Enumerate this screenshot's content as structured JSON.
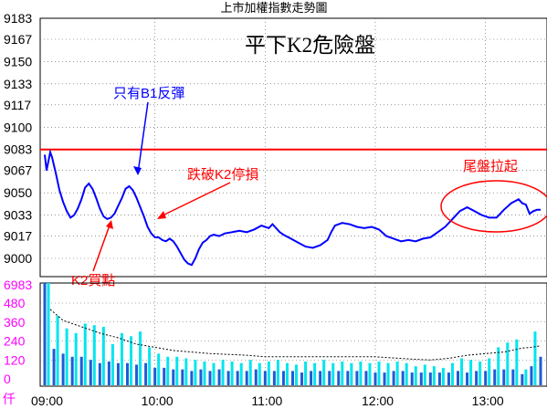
{
  "header": {
    "title": "上市加權指數走勢圖",
    "annotation_title": "平下K2危險盤"
  },
  "annotations": {
    "rebound": "只有B1反彈",
    "stop_loss": "跌破K2停損",
    "buy_point": "K2買點",
    "tail_rally": "尾盤拉起"
  },
  "colors": {
    "price_line": "#0000ff",
    "reference_line": "#ff0000",
    "volume_bar": "#00e5ee",
    "volume_bar_dark": "#1e5bd6",
    "volume_label": "#ff00ff",
    "annotation_blue": "#0000ff",
    "annotation_red": "#ff0000"
  },
  "chart_data": [
    {
      "type": "line",
      "title": "上市加權指數走勢圖",
      "y_ticks": [
        "9183",
        "9167",
        "9150",
        "9133",
        "9117",
        "9100",
        "9083",
        "9067",
        "9050",
        "9033",
        "9017",
        "9000"
      ],
      "ylim": [
        9000,
        9183
      ],
      "reference_value": 9083,
      "x_ticks": [
        "09:00",
        "10:00",
        "11:00",
        "12:00",
        "13:00"
      ],
      "x_tick_minutes": [
        0,
        60,
        120,
        180,
        240
      ],
      "xlim_minutes": [
        0,
        270
      ],
      "series": [
        {
          "points": [
            [
              0,
              9079
            ],
            [
              1,
              9067
            ],
            [
              3,
              9081
            ],
            [
              4,
              9077
            ],
            [
              6,
              9065
            ],
            [
              8,
              9052
            ],
            [
              10,
              9043
            ],
            [
              12,
              9036
            ],
            [
              14,
              9031
            ],
            [
              16,
              9033
            ],
            [
              18,
              9038
            ],
            [
              20,
              9045
            ],
            [
              22,
              9054
            ],
            [
              24,
              9057
            ],
            [
              26,
              9053
            ],
            [
              28,
              9046
            ],
            [
              30,
              9038
            ],
            [
              32,
              9032
            ],
            [
              34,
              9030
            ],
            [
              36,
              9031
            ],
            [
              38,
              9034
            ],
            [
              40,
              9040
            ],
            [
              42,
              9046
            ],
            [
              44,
              9053
            ],
            [
              46,
              9055
            ],
            [
              48,
              9052
            ],
            [
              50,
              9046
            ],
            [
              52,
              9039
            ],
            [
              54,
              9032
            ],
            [
              56,
              9024
            ],
            [
              58,
              9019
            ],
            [
              60,
              9016
            ],
            [
              62,
              9016
            ],
            [
              64,
              9014
            ],
            [
              66,
              9013
            ],
            [
              68,
              9015
            ],
            [
              70,
              9013
            ],
            [
              72,
              9009
            ],
            [
              74,
              9004
            ],
            [
              76,
              8999
            ],
            [
              78,
              8996
            ],
            [
              80,
              8995
            ],
            [
              82,
              9000
            ],
            [
              84,
              9007
            ],
            [
              86,
              9012
            ],
            [
              88,
              9014
            ],
            [
              90,
              9017
            ],
            [
              92,
              9018
            ],
            [
              95,
              9017
            ],
            [
              98,
              9019
            ],
            [
              102,
              9020
            ],
            [
              106,
              9021
            ],
            [
              110,
              9020
            ],
            [
              114,
              9022
            ],
            [
              118,
              9025
            ],
            [
              120,
              9024
            ],
            [
              122,
              9023
            ],
            [
              124,
              9026
            ],
            [
              126,
              9023
            ],
            [
              128,
              9020
            ],
            [
              130,
              9018
            ],
            [
              134,
              9015
            ],
            [
              138,
              9012
            ],
            [
              142,
              9009
            ],
            [
              146,
              9008
            ],
            [
              150,
              9010
            ],
            [
              154,
              9014
            ],
            [
              156,
              9020
            ],
            [
              158,
              9025
            ],
            [
              162,
              9027
            ],
            [
              166,
              9026
            ],
            [
              170,
              9024
            ],
            [
              174,
              9023
            ],
            [
              178,
              9024
            ],
            [
              182,
              9022
            ],
            [
              186,
              9017
            ],
            [
              190,
              9015
            ],
            [
              194,
              9013
            ],
            [
              198,
              9014
            ],
            [
              202,
              9013
            ],
            [
              206,
              9015
            ],
            [
              210,
              9016
            ],
            [
              214,
              9020
            ],
            [
              218,
              9024
            ],
            [
              222,
              9030
            ],
            [
              226,
              9036
            ],
            [
              230,
              9039
            ],
            [
              234,
              9036
            ],
            [
              238,
              9033
            ],
            [
              242,
              9031
            ],
            [
              246,
              9031
            ],
            [
              250,
              9037
            ],
            [
              254,
              9042
            ],
            [
              258,
              9045
            ],
            [
              260,
              9042
            ],
            [
              262,
              9041
            ],
            [
              264,
              9034
            ],
            [
              266,
              9036
            ],
            [
              268,
              9037
            ],
            [
              270,
              9037
            ]
          ]
        }
      ]
    },
    {
      "type": "bar",
      "y_ticks": [
        "6983",
        "480",
        "360",
        "240",
        "120",
        "0"
      ],
      "y_unit": "仟",
      "x_ticks": [
        "09:00",
        "10:00",
        "11:00",
        "12:00",
        "13:00"
      ],
      "bar_width_minutes": 5,
      "y_scale": "compressed top tick",
      "series": [
        {
          "type": "bar",
          "x_minutes": [
            2,
            7,
            12,
            17,
            22,
            27,
            32,
            37,
            42,
            47,
            52,
            57,
            62,
            67,
            72,
            77,
            82,
            87,
            92,
            97,
            102,
            107,
            112,
            117,
            122,
            127,
            132,
            137,
            142,
            147,
            152,
            157,
            162,
            167,
            172,
            177,
            182,
            187,
            192,
            197,
            202,
            207,
            212,
            217,
            222,
            227,
            232,
            237,
            242,
            247,
            252,
            257,
            262,
            267
          ],
          "values": [
            6983,
            400,
            320,
            290,
            350,
            340,
            330,
            220,
            290,
            270,
            300,
            200,
            160,
            140,
            140,
            130,
            120,
            110,
            100,
            120,
            110,
            100,
            120,
            100,
            110,
            120,
            100,
            90,
            110,
            100,
            120,
            100,
            110,
            100,
            110,
            100,
            110,
            100,
            110,
            100,
            80,
            90,
            80,
            70,
            100,
            130,
            120,
            110,
            130,
            200,
            230,
            250,
            60,
            300
          ]
        },
        {
          "type": "bar",
          "x_minutes": [
            0,
            5,
            10,
            15,
            20,
            25,
            30,
            35,
            40,
            45,
            50,
            55,
            60,
            65,
            70,
            75,
            80,
            85,
            90,
            95,
            100,
            105,
            110,
            115,
            120,
            125,
            130,
            135,
            140,
            145,
            150,
            155,
            160,
            165,
            170,
            175,
            180,
            185,
            190,
            195,
            200,
            205,
            210,
            215,
            220,
            225,
            230,
            235,
            240,
            245,
            250,
            255,
            260,
            265,
            270
          ],
          "values": [
            6983,
            190,
            160,
            140,
            140,
            120,
            100,
            110,
            100,
            100,
            90,
            100,
            70,
            70,
            60,
            60,
            50,
            60,
            50,
            60,
            50,
            50,
            50,
            60,
            50,
            50,
            50,
            50,
            40,
            50,
            50,
            50,
            50,
            50,
            50,
            50,
            40,
            40,
            50,
            50,
            40,
            40,
            40,
            40,
            40,
            50,
            40,
            50,
            50,
            60,
            60,
            60,
            30,
            80,
            140
          ]
        },
        {
          "type": "line",
          "name": "moving average",
          "x_minutes": [
            3,
            10,
            20,
            30,
            40,
            50,
            60,
            70,
            80,
            90,
            100,
            110,
            120,
            140,
            160,
            180,
            200,
            210,
            220,
            230,
            240,
            250,
            260,
            265,
            270
          ],
          "values": [
            440,
            370,
            330,
            290,
            260,
            220,
            200,
            180,
            170,
            160,
            155,
            150,
            140,
            140,
            140,
            140,
            125,
            120,
            130,
            150,
            160,
            170,
            195,
            200,
            210
          ]
        }
      ]
    }
  ]
}
